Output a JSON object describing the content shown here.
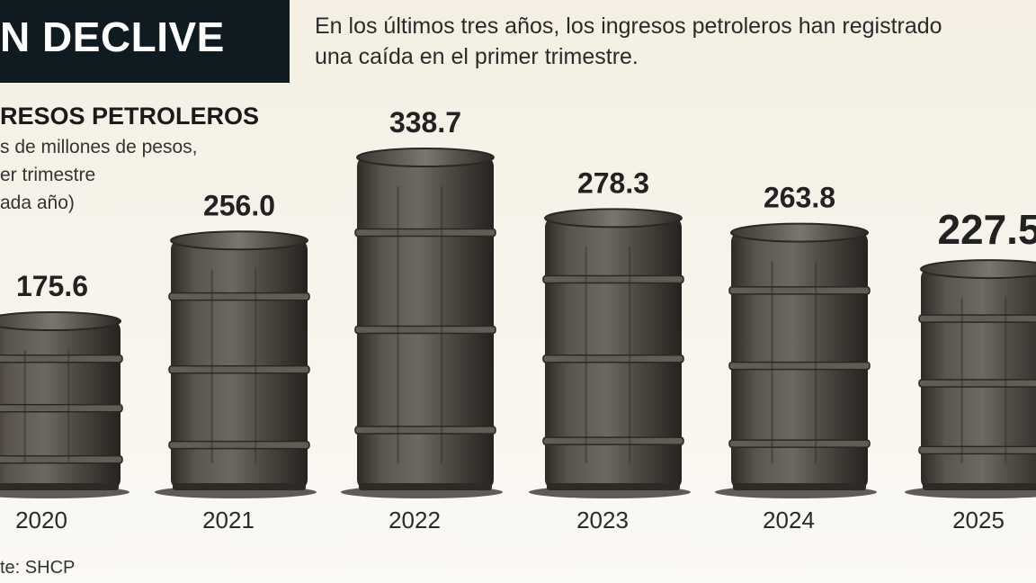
{
  "header": {
    "title": "N DECLIVE",
    "subtitle": "En los últimos tres años, los ingresos petroleros han registrado\nuna caída en el primer trimestre."
  },
  "chart_title": "RESOS PETROLEROS",
  "chart_units": "s de millones de pesos,\ner trimestre\nada año)",
  "source": "te: SHCP",
  "colors": {
    "header_bg": "#0f1a21",
    "barrel": "#4a4640",
    "background": "#f4efe2"
  },
  "chart_data": {
    "type": "bar",
    "title": "RESOS PETROLEROS",
    "xlabel": "",
    "ylabel": "",
    "categories": [
      "2020",
      "2021",
      "2022",
      "2023",
      "2024",
      "2025"
    ],
    "values": [
      175.6,
      256.0,
      338.7,
      278.3,
      263.8,
      227.5
    ],
    "value_labels": [
      "175.6",
      "256.0",
      "338.7",
      "278.3",
      "263.8",
      "227.5"
    ],
    "highlight_index": 5,
    "bar_style": "oil-barrel",
    "grid": false
  }
}
